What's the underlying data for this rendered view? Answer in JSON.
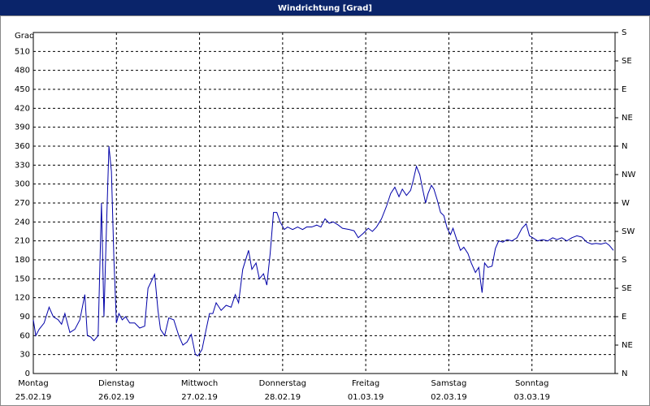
{
  "window_title": "Windrichtung [Grad]",
  "chart_data": {
    "type": "line",
    "y_label": "Grad",
    "x": [
      0,
      0.03,
      0.07,
      0.13,
      0.19,
      0.24,
      0.3,
      0.34,
      0.38,
      0.44,
      0.5,
      0.56,
      0.62,
      0.65,
      0.69,
      0.73,
      0.78,
      0.82,
      0.85,
      0.88,
      0.91,
      0.94,
      0.97,
      1.0,
      1.03,
      1.07,
      1.11,
      1.16,
      1.22,
      1.28,
      1.34,
      1.38,
      1.46,
      1.5,
      1.53,
      1.58,
      1.63,
      1.69,
      1.75,
      1.8,
      1.85,
      1.9,
      1.95,
      1.98,
      2.03,
      2.08,
      2.12,
      2.16,
      2.2,
      2.26,
      2.32,
      2.38,
      2.43,
      2.47,
      2.52,
      2.59,
      2.63,
      2.68,
      2.72,
      2.77,
      2.81,
      2.85,
      2.89,
      2.93,
      2.97,
      3.02,
      3.06,
      3.12,
      3.18,
      3.24,
      3.29,
      3.35,
      3.41,
      3.46,
      3.51,
      3.56,
      3.61,
      3.67,
      3.72,
      3.8,
      3.86,
      3.91,
      3.97,
      4.03,
      4.08,
      4.13,
      4.19,
      4.25,
      4.3,
      4.35,
      4.4,
      4.44,
      4.49,
      4.54,
      4.57,
      4.61,
      4.65,
      4.68,
      4.72,
      4.75,
      4.79,
      4.82,
      4.86,
      4.9,
      4.94,
      4.98,
      5.02,
      5.05,
      5.1,
      5.14,
      5.18,
      5.23,
      5.27,
      5.32,
      5.36,
      5.4,
      5.43,
      5.47,
      5.52,
      5.56,
      5.6,
      5.65,
      5.7,
      5.76,
      5.82,
      5.88,
      5.93,
      5.97,
      6.01,
      6.07,
      6.13,
      6.19,
      6.25,
      6.3,
      6.36,
      6.42,
      6.48,
      6.54,
      6.6,
      6.66,
      6.72,
      6.77,
      6.83,
      6.89,
      6.93,
      6.98
    ],
    "series": [
      {
        "name": "Windrichtung",
        "color": "#0000a8",
        "values": [
          85,
          60,
          70,
          80,
          105,
          90,
          85,
          78,
          95,
          65,
          70,
          85,
          125,
          60,
          58,
          52,
          60,
          270,
          90,
          230,
          360,
          320,
          180,
          80,
          95,
          85,
          90,
          80,
          80,
          72,
          75,
          135,
          157,
          100,
          70,
          60,
          88,
          85,
          60,
          45,
          50,
          62,
          30,
          28,
          38,
          70,
          95,
          95,
          112,
          100,
          108,
          105,
          125,
          112,
          165,
          195,
          165,
          175,
          150,
          158,
          140,
          190,
          255,
          255,
          240,
          228,
          232,
          228,
          232,
          228,
          232,
          232,
          235,
          232,
          245,
          238,
          240,
          235,
          230,
          228,
          226,
          215,
          222,
          230,
          225,
          232,
          245,
          265,
          285,
          295,
          280,
          292,
          282,
          290,
          305,
          328,
          315,
          295,
          270,
          285,
          298,
          292,
          275,
          255,
          250,
          230,
          220,
          230,
          210,
          195,
          200,
          190,
          175,
          160,
          168,
          128,
          175,
          168,
          170,
          198,
          210,
          208,
          212,
          210,
          215,
          230,
          237,
          218,
          215,
          210,
          212,
          210,
          215,
          212,
          215,
          210,
          215,
          218,
          216,
          208,
          205,
          206,
          205,
          207,
          203,
          195
        ]
      }
    ],
    "xlim": [
      0,
      7
    ],
    "xticks": [
      {
        "value": 0,
        "label": "Montag"
      },
      {
        "value": 1,
        "label": "Dienstag"
      },
      {
        "value": 2,
        "label": "Mittwoch"
      },
      {
        "value": 3,
        "label": "Donnerstag"
      },
      {
        "value": 4,
        "label": "Freitag"
      },
      {
        "value": 5,
        "label": "Samstag"
      },
      {
        "value": 6,
        "label": "Sonntag"
      }
    ],
    "xtick_dates": [
      "25.02.19",
      "26.02.19",
      "27.02.19",
      "28.02.19",
      "01.03.19",
      "02.03.19",
      "03.03.19"
    ],
    "ylim": [
      0,
      540
    ],
    "yticks": [
      0,
      30,
      60,
      90,
      120,
      150,
      180,
      210,
      240,
      270,
      300,
      330,
      360,
      390,
      420,
      450,
      480,
      510
    ],
    "y2lim": [
      0,
      540
    ],
    "y2ticks": [
      {
        "value": 0,
        "label": "N"
      },
      {
        "value": 45,
        "label": "NE"
      },
      {
        "value": 90,
        "label": "E"
      },
      {
        "value": 135,
        "label": "SE"
      },
      {
        "value": 180,
        "label": "S"
      },
      {
        "value": 225,
        "label": "SW"
      },
      {
        "value": 270,
        "label": "W"
      },
      {
        "value": 315,
        "label": "NW"
      },
      {
        "value": 360,
        "label": "N"
      },
      {
        "value": 405,
        "label": "NE"
      },
      {
        "value": 450,
        "label": "E"
      },
      {
        "value": 495,
        "label": "SE"
      },
      {
        "value": 540,
        "label": "S"
      }
    ],
    "grid": true
  }
}
